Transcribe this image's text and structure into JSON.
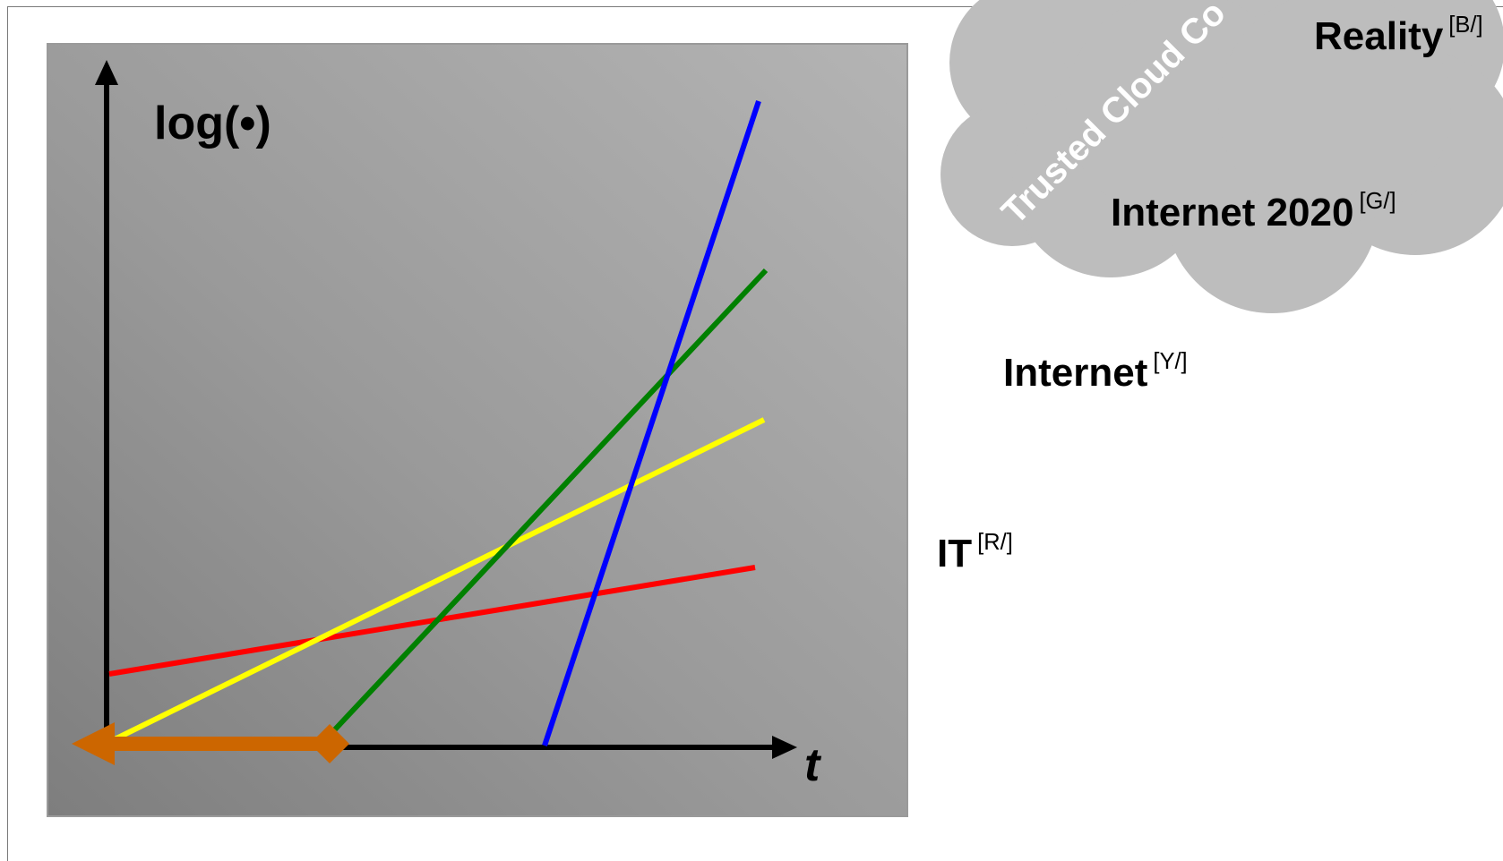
{
  "chart": {
    "y_axis_label": "log(•)",
    "x_axis_label": "t"
  },
  "cloud": {
    "text": "Trusted Cloud Co",
    "fill": "#bdbdbd"
  },
  "legend_labels": {
    "reality": {
      "text": "Reality",
      "tag": "[B/]"
    },
    "internet2020": {
      "text": "Internet 2020",
      "tag": "[G/]"
    },
    "internet": {
      "text": "Internet",
      "tag": "[Y/]"
    },
    "it": {
      "text": "IT",
      "tag": "[R/]"
    }
  },
  "colors": {
    "blue": "#0000ff",
    "green": "#008000",
    "yellow": "#ffff00",
    "red": "#ff0000",
    "span_arrow": "#cc6600",
    "axis": "#000000"
  }
}
